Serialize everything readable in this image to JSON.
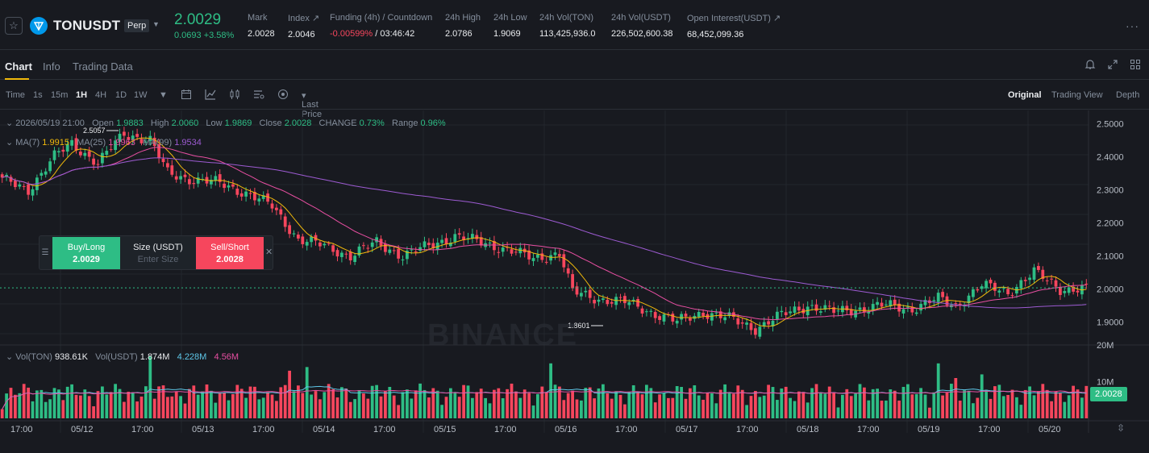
{
  "header": {
    "symbol": "TONUSDT",
    "contract": "Perp",
    "last_price": "2.0029",
    "change": "0.0693 +3.58%",
    "stats": [
      {
        "key": "Mark",
        "value": "2.0028"
      },
      {
        "key": "Index ↗",
        "value": "2.0046"
      },
      {
        "key": "Funding (4h) / Countdown",
        "value_red": "-0.00599%",
        "value": " / 03:46:42"
      },
      {
        "key": "24h High",
        "value": "2.0786"
      },
      {
        "key": "24h Low",
        "value": "1.9069"
      },
      {
        "key": "24h Vol(TON)",
        "value": "113,425,936.0"
      },
      {
        "key": "24h Vol(USDT)",
        "value": "226,502,600.38"
      },
      {
        "key": "Open Interest(USDT) ↗",
        "value": "68,452,099.36"
      }
    ]
  },
  "tabs": [
    {
      "label": "Chart"
    },
    {
      "label": "Info"
    },
    {
      "label": "Trading Data"
    }
  ],
  "toolbar": {
    "intervals": [
      "Time",
      "1s",
      "15m",
      "1H",
      "4H",
      "1D",
      "1W"
    ],
    "active_interval": "1H",
    "price_type": "Last Price",
    "views": [
      "Original",
      "Trading View",
      "Depth"
    ],
    "active_view": "Original"
  },
  "ohlc": {
    "date": "2026/05/19 21:00",
    "open_label": "Open",
    "open": "1.9883",
    "high_label": "High",
    "high": "2.0060",
    "low_label": "Low",
    "low": "1.9869",
    "close_label": "Close",
    "close": "2.0028",
    "change_label": "CHANGE",
    "change": "0.73%",
    "range_label": "Range",
    "range": "0.96%"
  },
  "ma": {
    "ma7_label": "MA(7)",
    "ma7": "1.9915",
    "ma25_label": "MA(25)",
    "ma25": "1.9963",
    "ma99_label": "MA(99)",
    "ma99": "1.9534"
  },
  "vol": {
    "label_ton": "Vol(TON)",
    "ton": "938.61K",
    "label_usdt": "Vol(USDT)",
    "usdt": "1.874M",
    "ma1": "4.228M",
    "ma2": "4.56M"
  },
  "current_price_tag": "2.0028",
  "high_marker": "2.5057",
  "low_marker": "1.8601",
  "watermark": "BINANCE",
  "trade_panel": {
    "buy_label": "Buy/Long",
    "buy_price": "2.0029",
    "size_label": "Size (USDT)",
    "size_placeholder": "Enter Size",
    "sell_label": "Sell/Short",
    "sell_price": "2.0028"
  },
  "colors": {
    "up": "#2ebd85",
    "down": "#f6465d",
    "ma7": "#f0b90b",
    "ma25": "#e84fa2",
    "ma99": "#9d5bd2",
    "vol_ma1": "#5ec7e8",
    "vol_ma2": "#e84fa2",
    "accent": "#f0b90b"
  },
  "chart_data": {
    "type": "candlestick",
    "price_axis": [
      "2.5000",
      "2.4000",
      "2.3000",
      "2.2000",
      "2.1000",
      "2.0000",
      "1.9000"
    ],
    "ylim": [
      1.83,
      2.54
    ],
    "volume_axis": [
      "20M",
      "10M"
    ],
    "volume_ylim": [
      0,
      22000000
    ],
    "time_labels": [
      "17:00",
      "05/12",
      "17:00",
      "05/13",
      "17:00",
      "05/14",
      "17:00",
      "05/15",
      "17:00",
      "05/16",
      "17:00",
      "05/17",
      "17:00",
      "05/18",
      "17:00",
      "05/19",
      "17:00",
      "05/20"
    ],
    "anchors": [
      [
        0,
        2.33
      ],
      [
        6,
        2.3
      ],
      [
        12,
        2.4
      ],
      [
        16,
        2.44
      ],
      [
        22,
        2.38
      ],
      [
        28,
        2.47
      ],
      [
        34,
        2.45
      ],
      [
        38,
        2.35
      ],
      [
        44,
        2.33
      ],
      [
        50,
        2.32
      ],
      [
        56,
        2.29
      ],
      [
        62,
        2.25
      ],
      [
        68,
        2.15
      ],
      [
        74,
        2.13
      ],
      [
        80,
        2.1
      ],
      [
        86,
        2.14
      ],
      [
        92,
        2.1
      ],
      [
        98,
        2.13
      ],
      [
        104,
        2.16
      ],
      [
        110,
        2.14
      ],
      [
        116,
        2.12
      ],
      [
        122,
        2.09
      ],
      [
        128,
        2.11
      ],
      [
        131,
        1.99
      ],
      [
        137,
        1.97
      ],
      [
        143,
        1.96
      ],
      [
        149,
        1.93
      ],
      [
        155,
        1.9
      ],
      [
        161,
        1.93
      ],
      [
        167,
        1.91
      ],
      [
        173,
        1.88
      ],
      [
        179,
        1.92
      ],
      [
        185,
        1.95
      ],
      [
        191,
        1.93
      ],
      [
        197,
        1.94
      ],
      [
        203,
        1.95
      ],
      [
        209,
        1.94
      ],
      [
        215,
        1.97
      ],
      [
        219,
        1.95
      ],
      [
        225,
        2.01
      ],
      [
        231,
        1.99
      ],
      [
        237,
        2.05
      ],
      [
        243,
        2.0
      ],
      [
        249,
        2.0
      ]
    ],
    "volume_spikes": [
      [
        34,
        17000000
      ],
      [
        66,
        13000000
      ],
      [
        70,
        14000000
      ],
      [
        126,
        15000000
      ],
      [
        215,
        15000000
      ],
      [
        219,
        11000000
      ],
      [
        225,
        12000000
      ]
    ]
  }
}
